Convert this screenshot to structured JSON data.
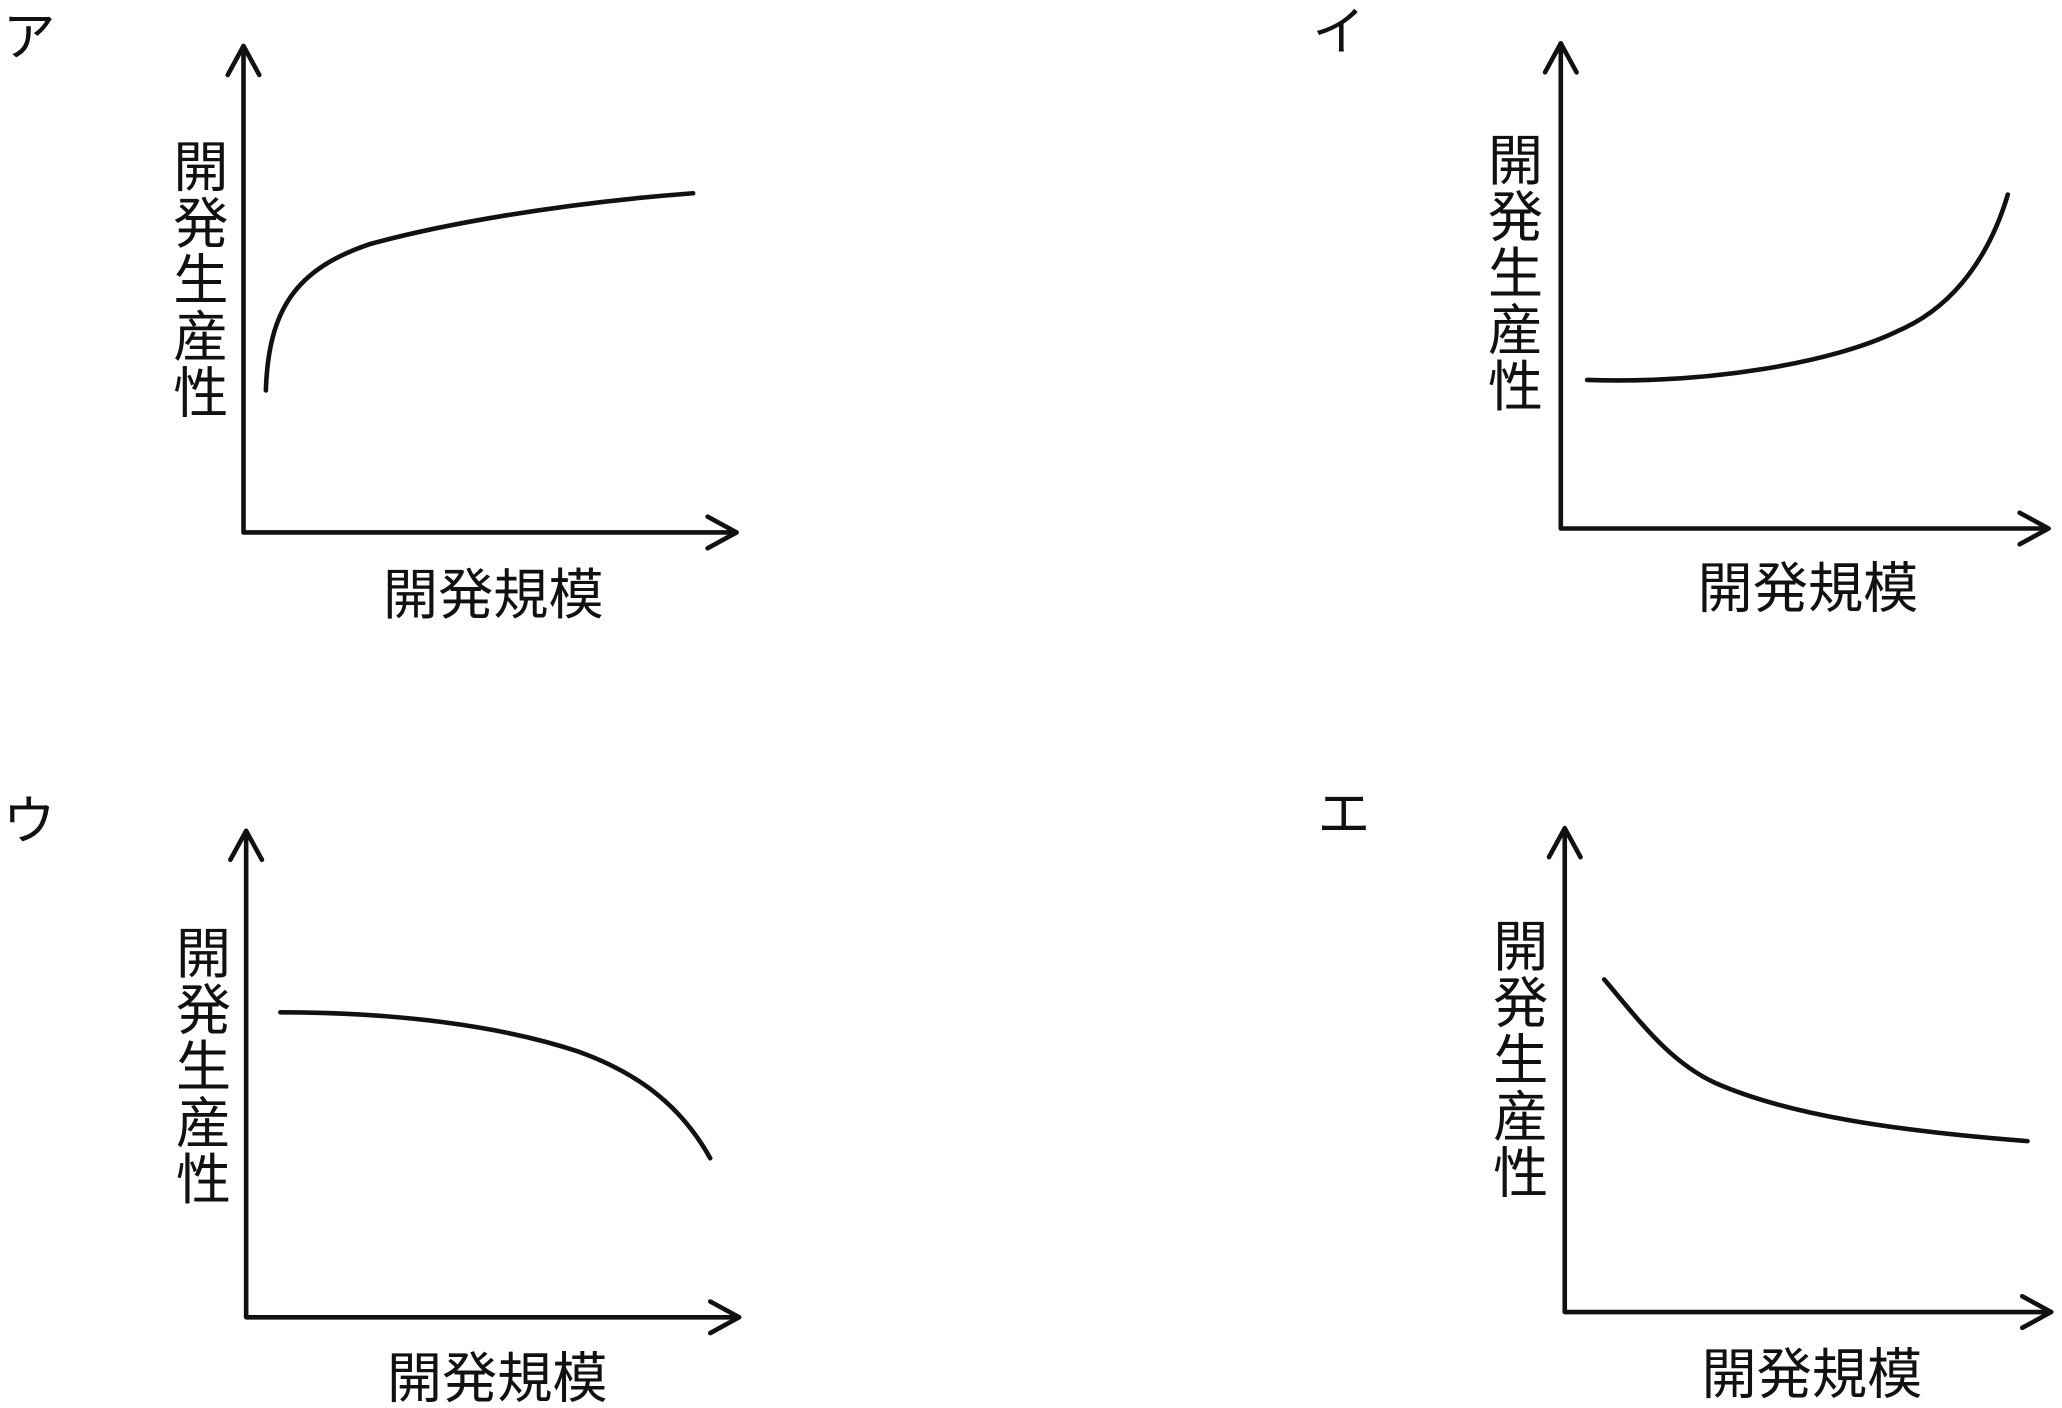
{
  "panels": [
    {
      "label": "ア",
      "y_label": "開発生産性",
      "x_label": "開発規模"
    },
    {
      "label": "イ",
      "y_label": "開発生産性",
      "x_label": "開発規模"
    },
    {
      "label": "ウ",
      "y_label": "開発生産性",
      "x_label": "開発規模"
    },
    {
      "label": "エ",
      "y_label": "開発生産性",
      "x_label": "開発規模"
    }
  ]
}
